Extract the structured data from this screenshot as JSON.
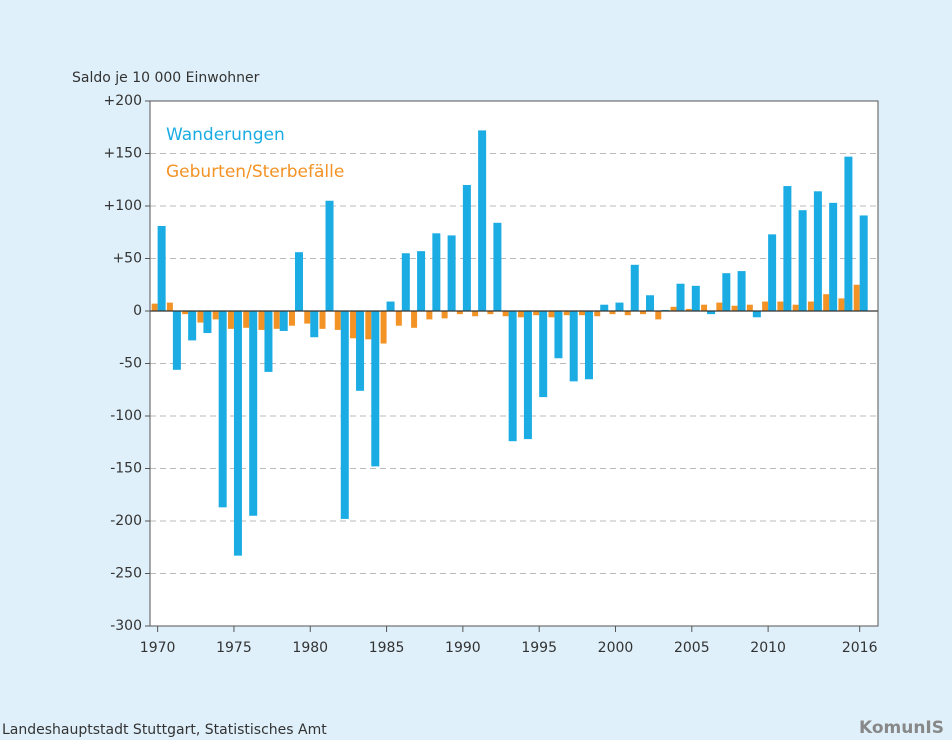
{
  "chart_data": {
    "type": "bar",
    "y_label": "Saldo je 10 000 Einwohner",
    "source": "Landeshauptstadt Stuttgart, Statistisches Amt",
    "logo": "KomunIS",
    "x": [
      1970,
      1971,
      1972,
      1973,
      1974,
      1975,
      1976,
      1977,
      1978,
      1979,
      1980,
      1981,
      1982,
      1983,
      1984,
      1985,
      1986,
      1987,
      1988,
      1989,
      1990,
      1991,
      1992,
      1993,
      1994,
      1995,
      1996,
      1997,
      1998,
      1999,
      2000,
      2001,
      2002,
      2003,
      2004,
      2005,
      2006,
      2007,
      2008,
      2009,
      2010,
      2011,
      2012,
      2013,
      2014,
      2015,
      2016
    ],
    "series": [
      {
        "name": "Geburten/Sterbefälle",
        "color": "#f39325",
        "values": [
          7,
          8,
          -3,
          -11,
          -8,
          -17,
          -16,
          -18,
          -17,
          -14,
          -12,
          -17,
          -18,
          -26,
          -27,
          -31,
          -14,
          -16,
          -8,
          -7,
          -3,
          -5,
          -3,
          -5,
          -6,
          -4,
          -6,
          -4,
          -4,
          -5,
          -3,
          -4,
          -3,
          -8,
          4,
          2,
          6,
          8,
          5,
          6,
          9,
          9,
          6,
          9,
          16,
          12,
          25
        ]
      },
      {
        "name": "Wanderungen",
        "color": "#1aace3",
        "values": [
          81,
          -56,
          -28,
          -21,
          -187,
          -233,
          -195,
          -58,
          -19,
          56,
          -25,
          105,
          -198,
          -76,
          -148,
          9,
          55,
          57,
          74,
          72,
          120,
          172,
          84,
          -124,
          -122,
          -82,
          -45,
          -67,
          -65,
          6,
          8,
          44,
          15,
          1,
          26,
          24,
          -3,
          36,
          38,
          -6,
          73,
          119,
          96,
          114,
          103,
          147,
          91
        ]
      }
    ],
    "xlim": [
      1969.5,
      2017.2
    ],
    "xticks": [
      1970,
      1975,
      1980,
      1985,
      1990,
      1995,
      2000,
      2005,
      2010,
      2016
    ],
    "ylim": [
      -300,
      200
    ],
    "yticks": [
      {
        "value": 200,
        "label": "+200"
      },
      {
        "value": 150,
        "label": "+150"
      },
      {
        "value": 100,
        "label": "+100"
      },
      {
        "value": 50,
        "label": "+50"
      },
      0,
      -50,
      -100,
      -150,
      -200,
      -250,
      -300
    ],
    "grid": true
  }
}
